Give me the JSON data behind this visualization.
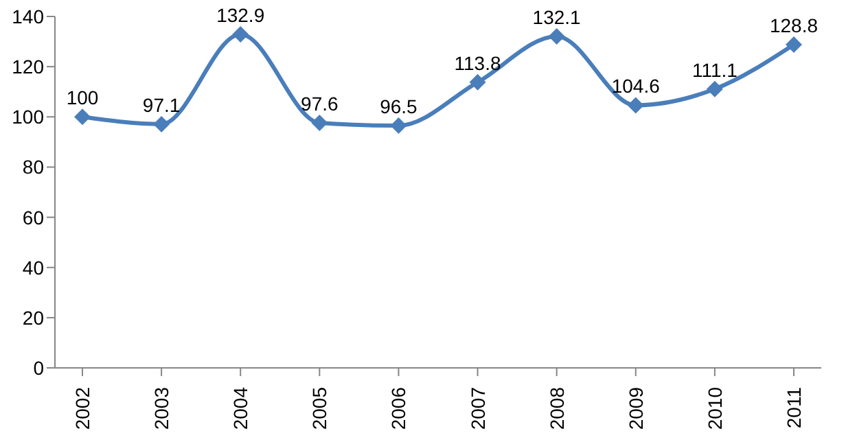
{
  "chart_data": {
    "type": "line",
    "categories": [
      "2002",
      "2003",
      "2004",
      "2005",
      "2006",
      "2007",
      "2008",
      "2009",
      "2010",
      "2011"
    ],
    "values": [
      100,
      97.1,
      132.9,
      97.6,
      96.5,
      113.8,
      132.1,
      104.6,
      111.1,
      128.8
    ],
    "color": "#4a7ebb",
    "ylim": [
      0,
      140
    ],
    "yticks": [
      0,
      20,
      40,
      60,
      80,
      100,
      120,
      140
    ],
    "grid": false,
    "legend": false,
    "marker": "diamond",
    "data_labels": true
  }
}
